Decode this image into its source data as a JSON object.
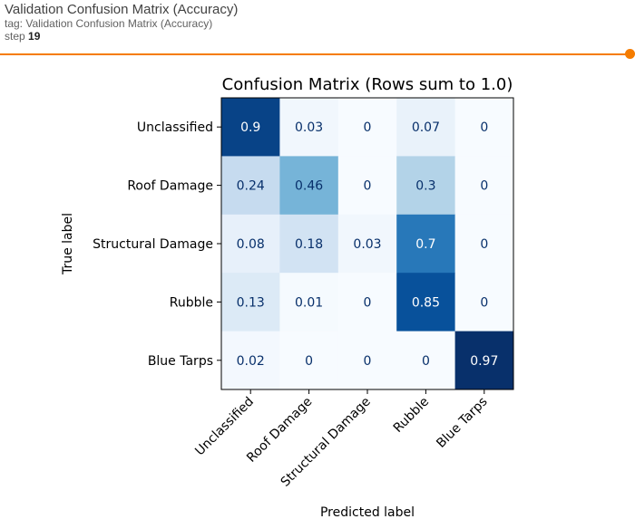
{
  "header": {
    "title": "Validation Confusion Matrix (Accuracy)",
    "tag": "tag: Validation Confusion Matrix (Accuracy)",
    "step_label": "step",
    "step_value": "19"
  },
  "colors": {
    "accent": "#f57c00",
    "colormap": "Blues"
  },
  "chart_data": {
    "type": "heatmap",
    "title": "Confusion Matrix (Rows sum to 1.0)",
    "xlabel": "Predicted label",
    "ylabel": "True label",
    "rows": [
      "Unclassified",
      "Roof Damage",
      "Structural Damage",
      "Rubble",
      "Blue Tarps"
    ],
    "columns": [
      "Unclassified",
      "Roof Damage",
      "Structural Damage",
      "Rubble",
      "Blue Tarps"
    ],
    "values": [
      [
        0.9,
        0.03,
        0,
        0.07,
        0
      ],
      [
        0.24,
        0.46,
        0,
        0.3,
        0
      ],
      [
        0.08,
        0.18,
        0.03,
        0.7,
        0
      ],
      [
        0.13,
        0.01,
        0,
        0.85,
        0
      ],
      [
        0.02,
        0,
        0,
        0,
        0.97
      ]
    ],
    "value_labels": [
      [
        "0.9",
        "0.03",
        "0",
        "0.07",
        "0"
      ],
      [
        "0.24",
        "0.46",
        "0",
        "0.3",
        "0"
      ],
      [
        "0.08",
        "0.18",
        "0.03",
        "0.7",
        "0"
      ],
      [
        "0.13",
        "0.01",
        "0",
        "0.85",
        "0"
      ],
      [
        "0.02",
        "0",
        "0",
        "0",
        "0.97"
      ]
    ]
  }
}
